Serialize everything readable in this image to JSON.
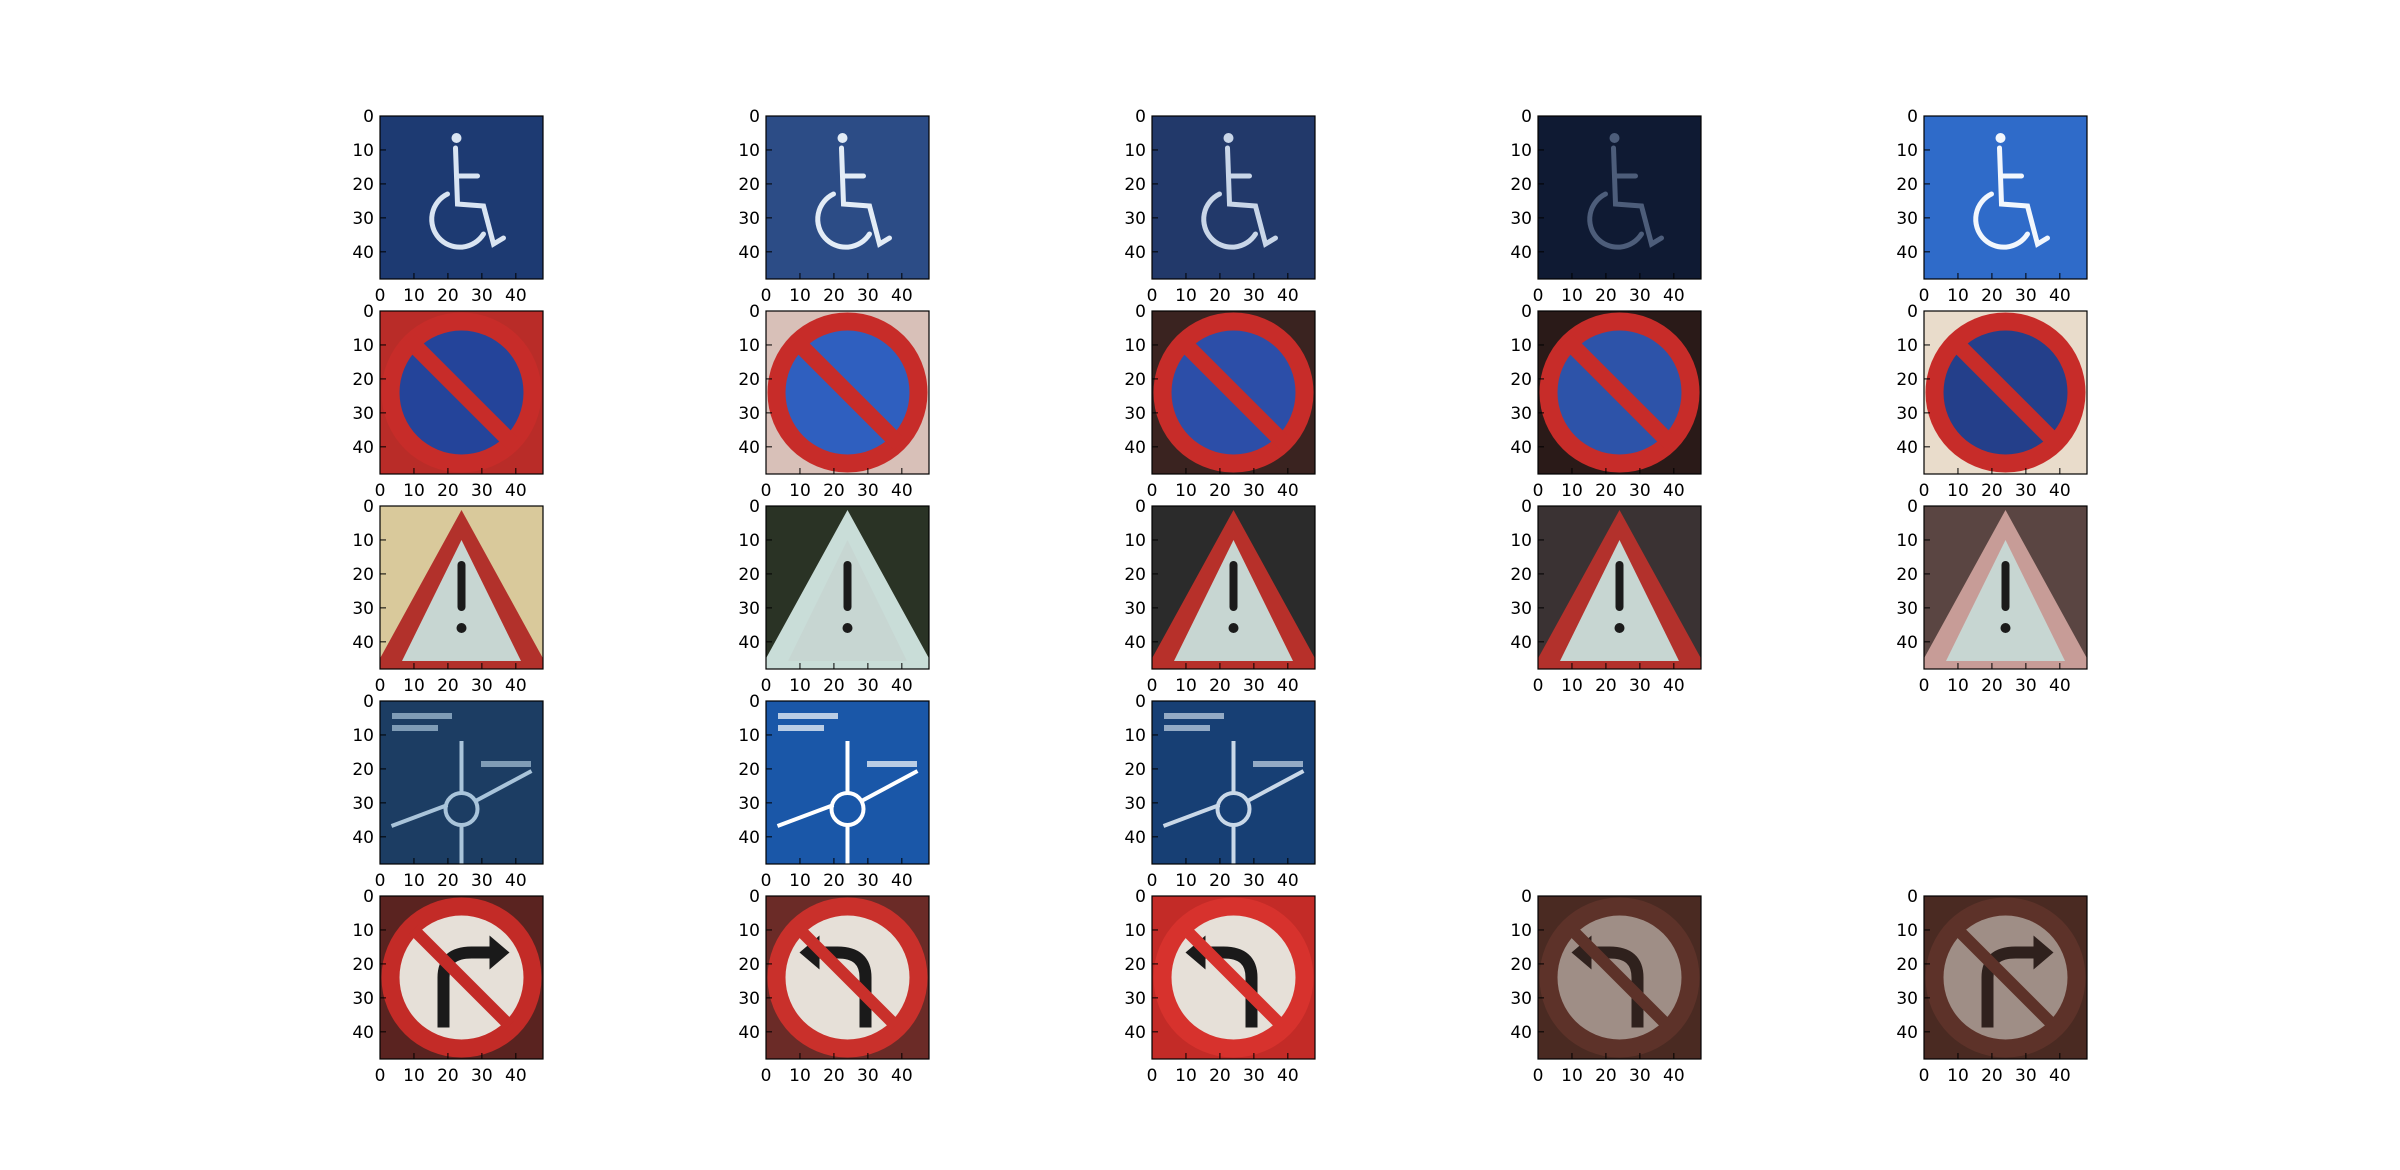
{
  "chart_data": {
    "type": "image_grid",
    "rows": 5,
    "cols": 5,
    "image_size": [
      48,
      48
    ],
    "xlim": [
      0,
      48
    ],
    "ylim": [
      48,
      0
    ],
    "xticks": [
      0,
      10,
      20,
      30,
      40
    ],
    "yticks": [
      0,
      10,
      20,
      30,
      40
    ],
    "xtick_labels": [
      "0",
      "10",
      "20",
      "30",
      "40"
    ],
    "ytick_labels": [
      "0",
      "10",
      "20",
      "30",
      "40"
    ],
    "grid": false,
    "rows_data": [
      {
        "sign": "wheelchair",
        "count": 5,
        "panels": [
          {
            "bg": "#1d3a72",
            "fg": "#d9e4f2",
            "dim": 1.0
          },
          {
            "bg": "#2c4c86",
            "fg": "#e3ecf6",
            "dim": 1.0
          },
          {
            "bg": "#22396a",
            "fg": "#c9d6e8",
            "dim": 1.0
          },
          {
            "bg": "#0f1a33",
            "fg": "#4d5d7a",
            "dim": 1.0
          },
          {
            "bg": "#2f6bc9",
            "fg": "#f2f7fd",
            "dim": 1.0
          }
        ]
      },
      {
        "sign": "no-parking",
        "count": 5,
        "panels": [
          {
            "bg": "#b92c28",
            "fg": "#24449a",
            "dim": 1.0
          },
          {
            "bg": "#d8c0b8",
            "fg": "#2f5fbf",
            "dim": 1.0
          },
          {
            "bg": "#3a2320",
            "fg": "#2c4ea8",
            "dim": 1.0
          },
          {
            "bg": "#2a1a18",
            "fg": "#2d53a9",
            "dim": 1.0
          },
          {
            "bg": "#e9dccb",
            "fg": "#243f8a",
            "dim": 1.0
          }
        ]
      },
      {
        "sign": "warning-triangle",
        "count": 5,
        "panels": [
          {
            "bg": "#d9c99b",
            "fg": "#b2312b",
            "dim": 1.0
          },
          {
            "bg": "#2a3325",
            "fg": "#c9ddd8",
            "dim": 1.0
          },
          {
            "bg": "#2b2b2b",
            "fg": "#b7302a",
            "dim": 1.0
          },
          {
            "bg": "#3a3233",
            "fg": "#b3312c",
            "dim": 1.0
          },
          {
            "bg": "#5a4542",
            "fg": "#c79c97",
            "dim": 1.0
          }
        ]
      },
      {
        "sign": "roundabout-direction",
        "count": 3,
        "panels": [
          {
            "bg": "#1c3d63",
            "fg": "#a9c4da",
            "dim": 1.0
          },
          {
            "bg": "#1a57a8",
            "fg": "#ffffff",
            "dim": 1.0
          },
          {
            "bg": "#173f74",
            "fg": "#c9d8e8",
            "dim": 1.0
          }
        ]
      },
      {
        "sign": "no-turn",
        "count": 5,
        "panels": [
          {
            "bg": "#5a2320",
            "fg": "#c32b27",
            "dim": 1.0,
            "arrow": "right"
          },
          {
            "bg": "#6b2b27",
            "fg": "#c9302b",
            "dim": 1.0,
            "arrow": "left"
          },
          {
            "bg": "#c32b27",
            "fg": "#d7322d",
            "dim": 1.0,
            "arrow": "left"
          },
          {
            "bg": "#4a2a22",
            "fg": "#6e3a30",
            "dim": 0.55,
            "arrow": "left"
          },
          {
            "bg": "#4a2a22",
            "fg": "#6e3a30",
            "dim": 0.55,
            "arrow": "right"
          }
        ]
      }
    ]
  }
}
